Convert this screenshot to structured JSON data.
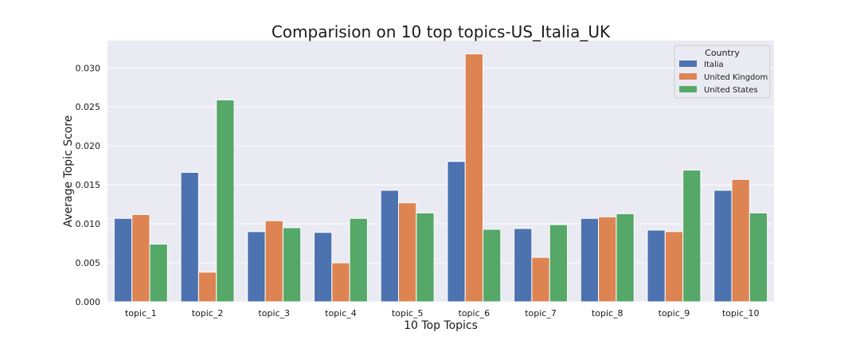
{
  "chart_data": {
    "type": "bar",
    "title": "Comparision on 10 top topics-US_Italia_UK",
    "xlabel": "10 Top Topics",
    "ylabel": "Average Topic Score",
    "categories": [
      "topic_1",
      "topic_2",
      "topic_3",
      "topic_4",
      "topic_5",
      "topic_6",
      "topic_7",
      "topic_8",
      "topic_9",
      "topic_10"
    ],
    "ylim": [
      0,
      0.0335
    ],
    "yticks": [
      0.0,
      0.005,
      0.01,
      0.015,
      0.02,
      0.025,
      0.03
    ],
    "ytick_labels": [
      "0.000",
      "0.005",
      "0.010",
      "0.015",
      "0.020",
      "0.025",
      "0.030"
    ],
    "grid": true,
    "legend": {
      "title": "Country",
      "position": "top-right"
    },
    "series": [
      {
        "name": "Italia",
        "color": "#4c72b0",
        "values": [
          0.0107,
          0.0166,
          0.009,
          0.0089,
          0.0143,
          0.018,
          0.0094,
          0.0107,
          0.0092,
          0.0143
        ]
      },
      {
        "name": "United Kingdom",
        "color": "#dd8452",
        "values": [
          0.0112,
          0.0038,
          0.0104,
          0.005,
          0.0127,
          0.0318,
          0.0057,
          0.0109,
          0.009,
          0.0157
        ]
      },
      {
        "name": "United States",
        "color": "#55a868",
        "values": [
          0.0074,
          0.0259,
          0.0095,
          0.0107,
          0.0114,
          0.0093,
          0.0099,
          0.0113,
          0.0169,
          0.0114
        ]
      }
    ],
    "background": "#eaeaf2"
  }
}
